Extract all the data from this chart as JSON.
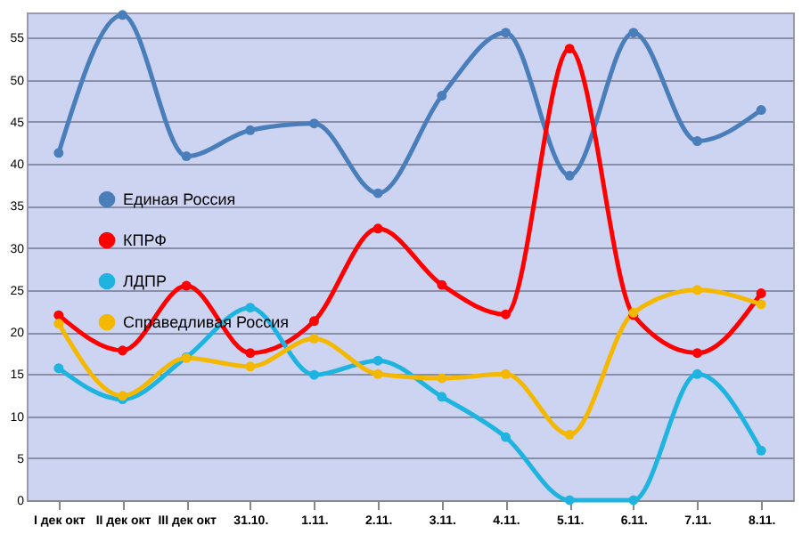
{
  "chart_data": {
    "type": "line",
    "categories": [
      "I дек окт",
      "II дек окт",
      "III дек окт",
      "31.10.",
      "1.11.",
      "2.11.",
      "3.11.",
      "4.11.",
      "5.11.",
      "6.11.",
      "7.11.",
      "8.11."
    ],
    "series": [
      {
        "name": "Единая Россия",
        "color": "#4a7ebb",
        "values": [
          41.3,
          57.7,
          40.9,
          44,
          44.8,
          36.5,
          48.1,
          55.6,
          38.6,
          55.6,
          42.7,
          46.4
        ]
      },
      {
        "name": "КПРФ",
        "color": "#ff0000",
        "values": [
          22,
          17.8,
          25.5,
          17.5,
          21.3,
          32.3,
          25.6,
          22.1,
          53.7,
          22,
          17.5,
          24.6
        ]
      },
      {
        "name": "ЛДПР",
        "color": "#1fb3e0",
        "values": [
          15.7,
          12,
          17,
          22.9,
          14.9,
          16.6,
          12.3,
          7.5,
          0,
          0,
          15,
          5.9
        ]
      },
      {
        "name": "Справедливая Россия",
        "color": "#f5b800",
        "values": [
          21,
          12.4,
          16.9,
          15.9,
          19.2,
          15,
          14.5,
          15,
          7.8,
          22.3,
          25,
          23.3
        ]
      }
    ],
    "ylim": [
      0,
      58
    ],
    "yticks": [
      0,
      5,
      10,
      15,
      20,
      25,
      30,
      35,
      40,
      45,
      50,
      55
    ],
    "grid": "y",
    "legend": "left",
    "marker": "circle",
    "line_style": "solid"
  }
}
